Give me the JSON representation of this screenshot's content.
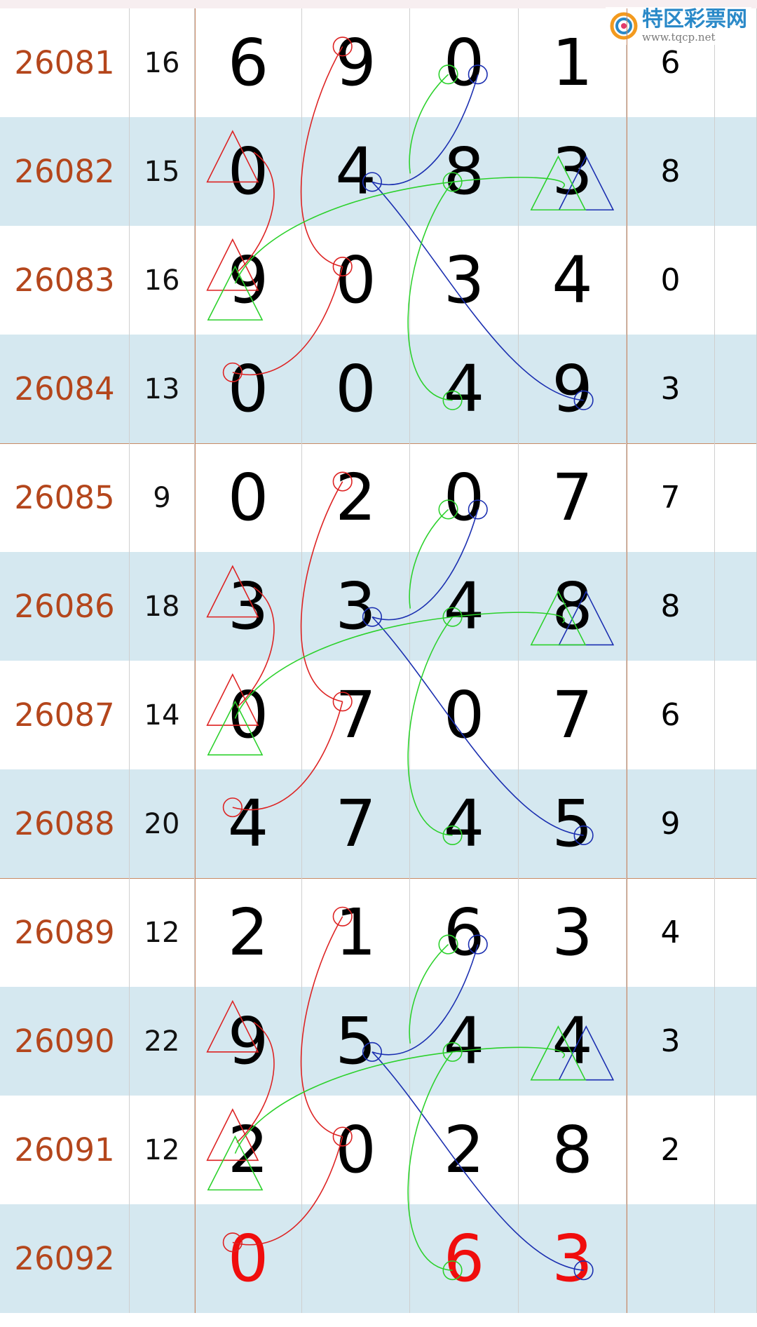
{
  "logo": {
    "name": "特区彩票网",
    "url": "www.tqcp.net"
  },
  "table": {
    "rows": [
      [
        "26081",
        "16",
        "6",
        "9",
        "0",
        "1",
        "6"
      ],
      [
        "26082",
        "15",
        "0",
        "4",
        "8",
        "3",
        "8"
      ],
      [
        "26083",
        "16",
        "9",
        "0",
        "3",
        "4",
        "0"
      ],
      [
        "26084",
        "13",
        "0",
        "0",
        "4",
        "9",
        "3"
      ],
      [
        "26085",
        "9",
        "0",
        "2",
        "0",
        "7",
        "7"
      ],
      [
        "26086",
        "18",
        "3",
        "3",
        "4",
        "8",
        "8"
      ],
      [
        "26087",
        "14",
        "0",
        "7",
        "0",
        "7",
        "6"
      ],
      [
        "26088",
        "20",
        "4",
        "7",
        "4",
        "5",
        "9"
      ],
      [
        "26089",
        "12",
        "2",
        "1",
        "6",
        "3",
        "4"
      ],
      [
        "26090",
        "22",
        "9",
        "5",
        "4",
        "4",
        "3"
      ],
      [
        "26091",
        "12",
        "2",
        "0",
        "2",
        "8",
        "2"
      ],
      [
        "26092",
        null,
        "0",
        null,
        "6",
        "3",
        null
      ]
    ]
  }
}
